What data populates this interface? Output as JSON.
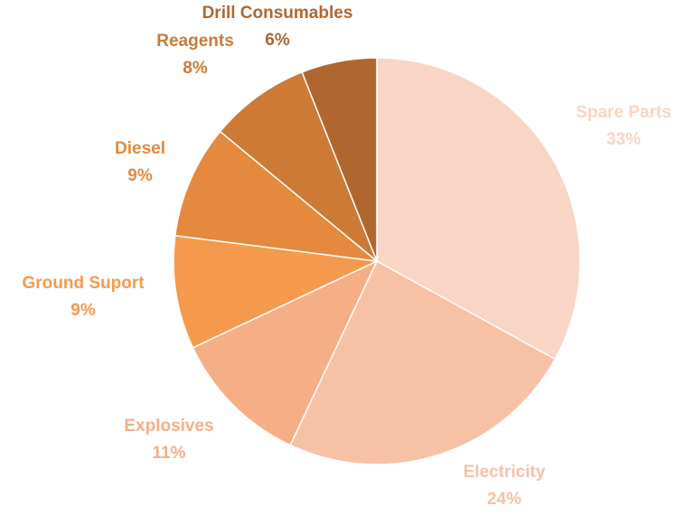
{
  "chart_data": {
    "type": "pie",
    "title": "",
    "categories": [
      "Spare Parts",
      "Electricity",
      "Explosives",
      "Ground Suport",
      "Diesel",
      "Reagents",
      "Drill Consumables"
    ],
    "values": [
      33,
      24,
      11,
      9,
      9,
      8,
      6
    ],
    "value_labels": [
      "33%",
      "24%",
      "11%",
      "9%",
      "9%",
      "8%",
      "6%"
    ],
    "colors": [
      "#F8D5C4",
      "#F7C1A6",
      "#F5AE86",
      "#F59A4C",
      "#E5893E",
      "#CD7A37",
      "#B0672F"
    ],
    "start_angle_deg": 0,
    "direction": "clockwise",
    "legend": "none",
    "labels": "outside, category name above percent"
  }
}
